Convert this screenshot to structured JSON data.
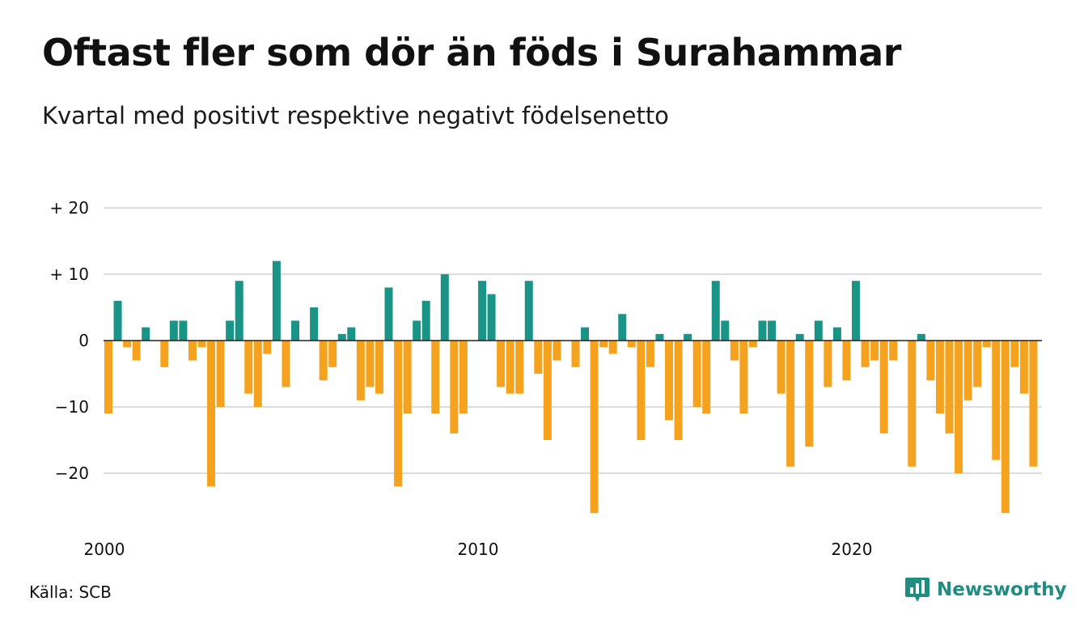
{
  "title": "Oftast fler som dör än föds i Surahammar",
  "subtitle": "Kvartal med positivt respektive negativt födelsenetto",
  "source": "Källa: SCB",
  "brand": "Newsworthy",
  "colors": {
    "positive": "#1a9486",
    "negative": "#f5a31f",
    "grid": "#dddddd",
    "brand": "#1f8d80"
  },
  "chart_data": {
    "type": "bar",
    "start_year": 2000,
    "x_ticks": [
      "2000",
      "2010",
      "2020"
    ],
    "y_ticks": [
      {
        "value": 20,
        "label": "+ 20"
      },
      {
        "value": 10,
        "label": "+ 10"
      },
      {
        "value": 0,
        "label": "0"
      },
      {
        "value": -10,
        "label": "−10"
      },
      {
        "value": -20,
        "label": "−20"
      }
    ],
    "ylim": [
      -27,
      20
    ],
    "grid": true,
    "values": [
      -11,
      6,
      -1,
      -3,
      2,
      0,
      -4,
      3,
      3,
      -3,
      -1,
      -22,
      -10,
      3,
      9,
      -8,
      -10,
      -2,
      12,
      -7,
      3,
      0,
      5,
      -6,
      -4,
      1,
      2,
      -9,
      -7,
      -8,
      8,
      -22,
      -11,
      3,
      6,
      -11,
      10,
      -14,
      -11,
      0,
      9,
      7,
      -7,
      -8,
      -8,
      9,
      -5,
      -15,
      -3,
      0,
      -4,
      2,
      -26,
      -1,
      -2,
      4,
      -1,
      -15,
      -4,
      1,
      -12,
      -15,
      1,
      -10,
      -11,
      9,
      3,
      -3,
      -11,
      -1,
      3,
      3,
      -8,
      -19,
      1,
      -16,
      3,
      -7,
      2,
      -6,
      9,
      -4,
      -3,
      -14,
      -3,
      0,
      -19,
      1,
      -6,
      -11,
      -14,
      -20,
      -9,
      -7,
      -1,
      -18,
      -26,
      -4,
      -8,
      -19
    ]
  }
}
